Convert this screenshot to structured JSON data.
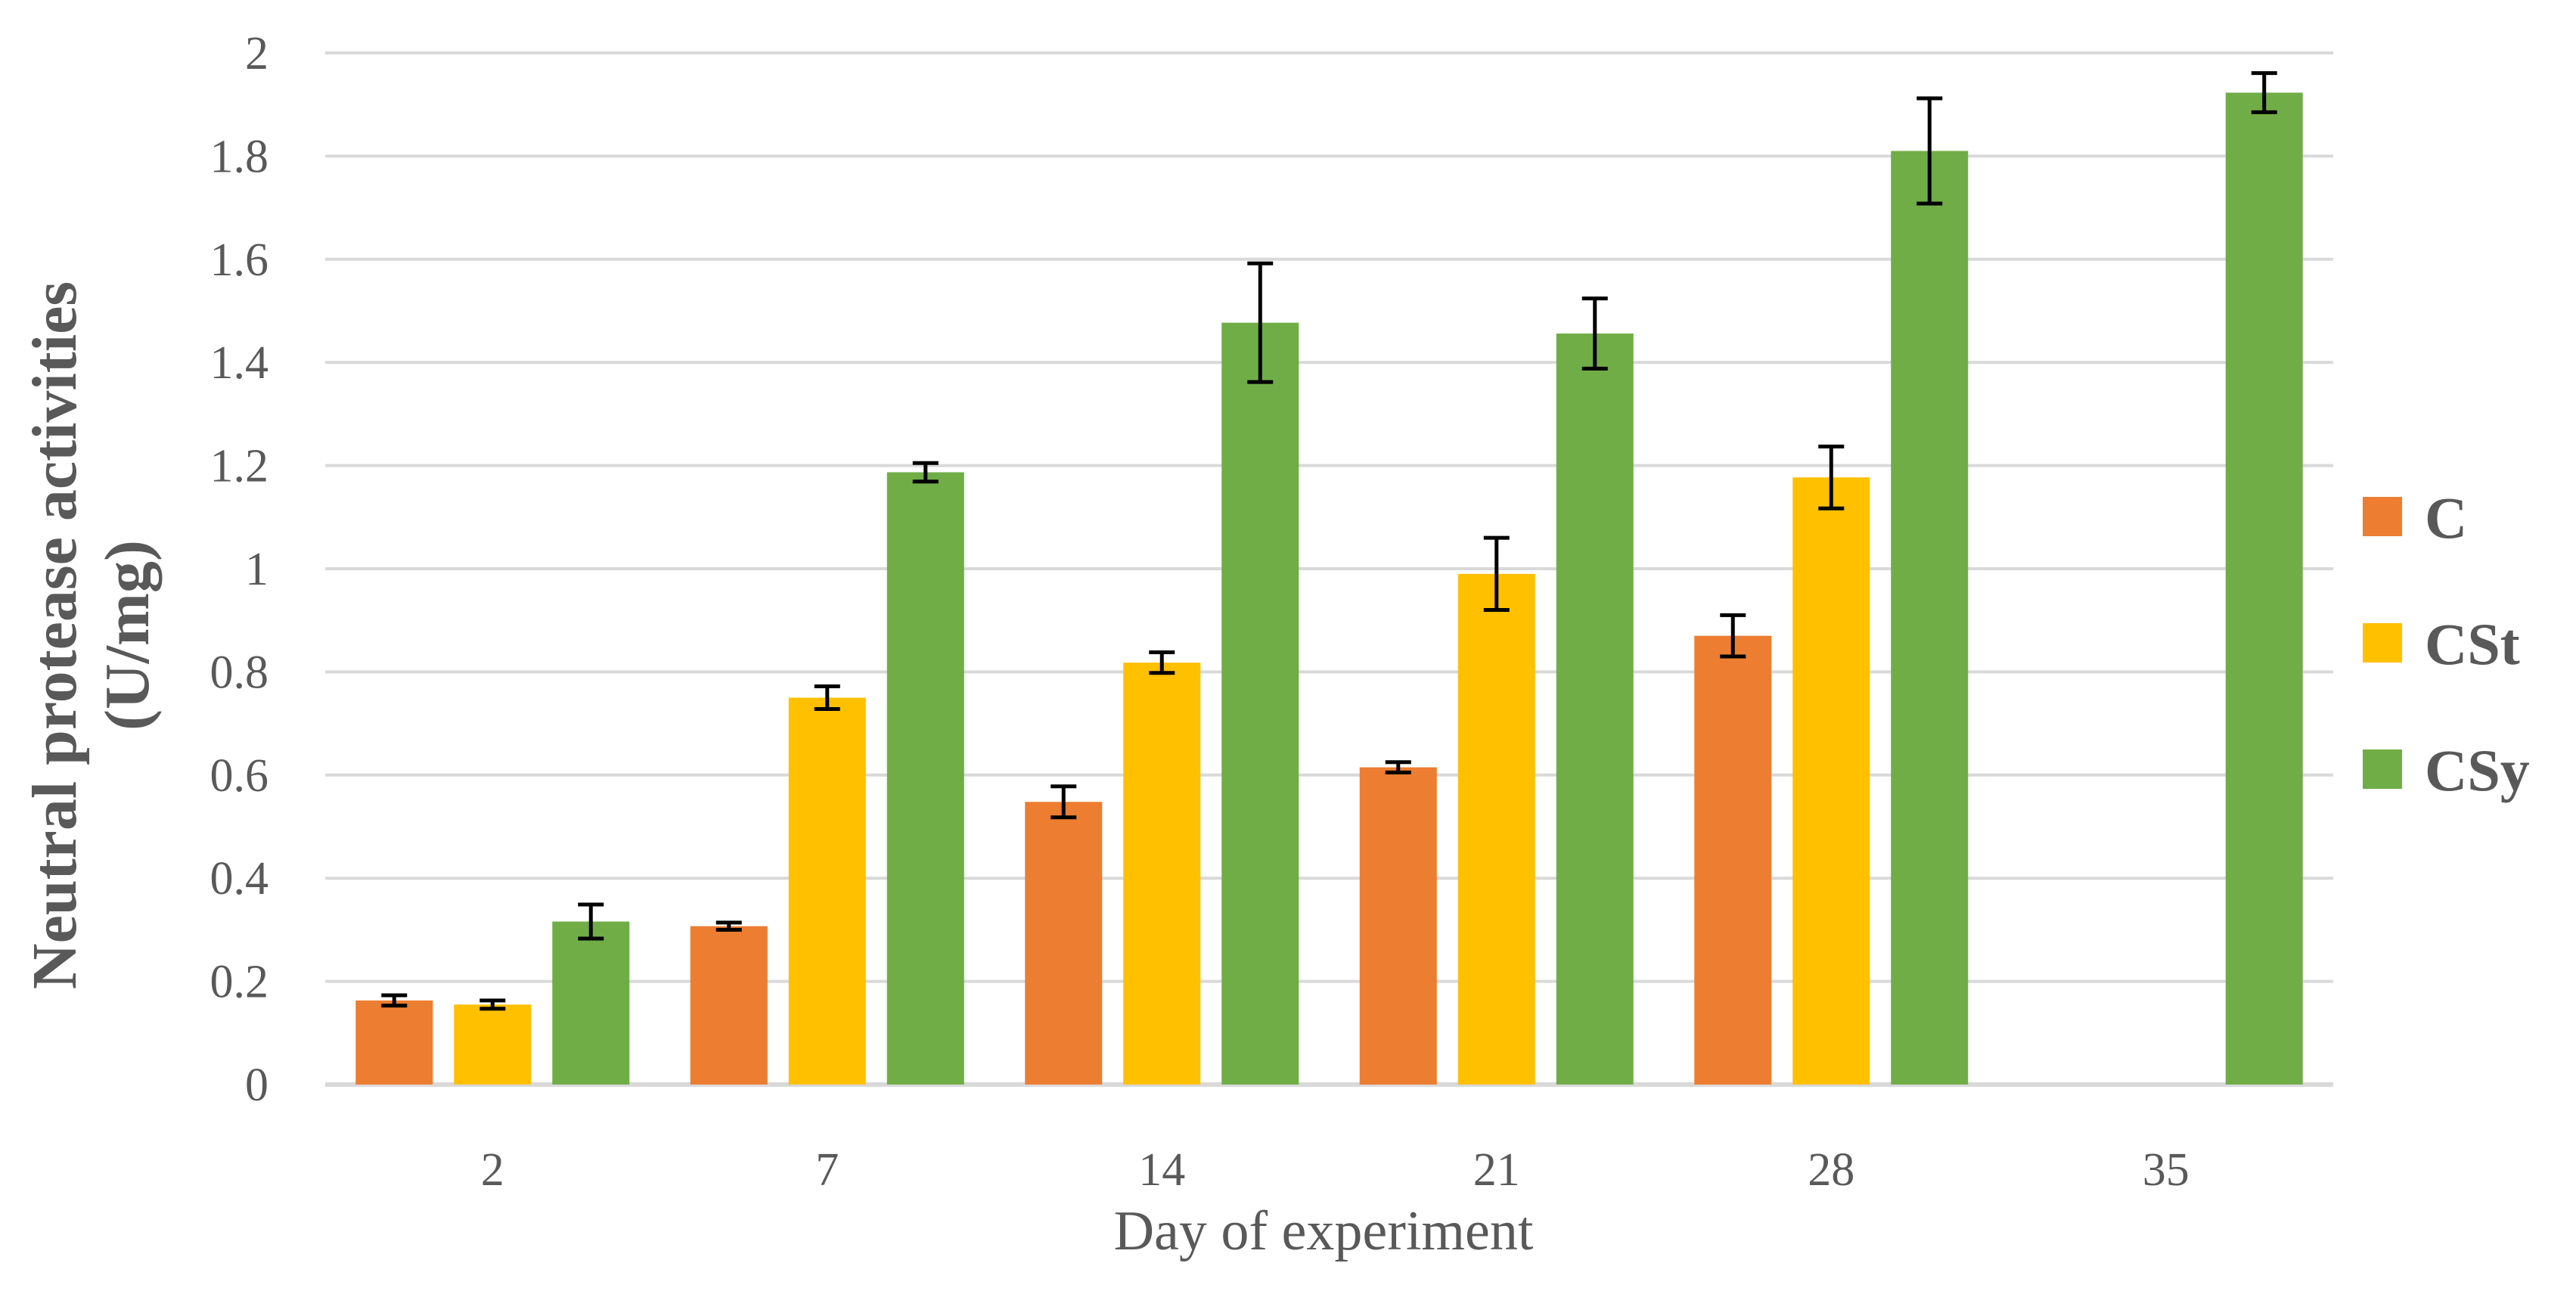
{
  "chart_data": {
    "type": "bar",
    "title": "",
    "xlabel": "Day of experiment",
    "ylabel_line1": "Neutral protease activities",
    "ylabel_line2": "(U/mg)",
    "categories": [
      "2",
      "7",
      "14",
      "21",
      "28",
      "35"
    ],
    "ylim": [
      0,
      2
    ],
    "yticks": [
      "0",
      "0.2",
      "0.4",
      "0.6",
      "0.8",
      "1",
      "1.2",
      "1.4",
      "1.6",
      "1.8",
      "2"
    ],
    "grid": true,
    "legend_position": "right",
    "series": [
      {
        "name": "C",
        "color": "#ED7D31",
        "values": [
          0.163,
          0.307,
          0.548,
          0.615,
          0.87,
          null
        ],
        "errors": [
          0.01,
          0.007,
          0.03,
          0.01,
          0.04,
          null
        ]
      },
      {
        "name": "CSt",
        "color": "#FFC000",
        "values": [
          0.155,
          0.75,
          0.818,
          0.99,
          1.177,
          null
        ],
        "errors": [
          0.008,
          0.022,
          0.02,
          0.07,
          0.06,
          null
        ]
      },
      {
        "name": "CSy",
        "color": "#70AD47",
        "values": [
          0.316,
          1.187,
          1.477,
          1.456,
          1.81,
          1.923
        ],
        "errors": [
          0.033,
          0.018,
          0.115,
          0.068,
          0.102,
          0.038
        ]
      }
    ]
  }
}
